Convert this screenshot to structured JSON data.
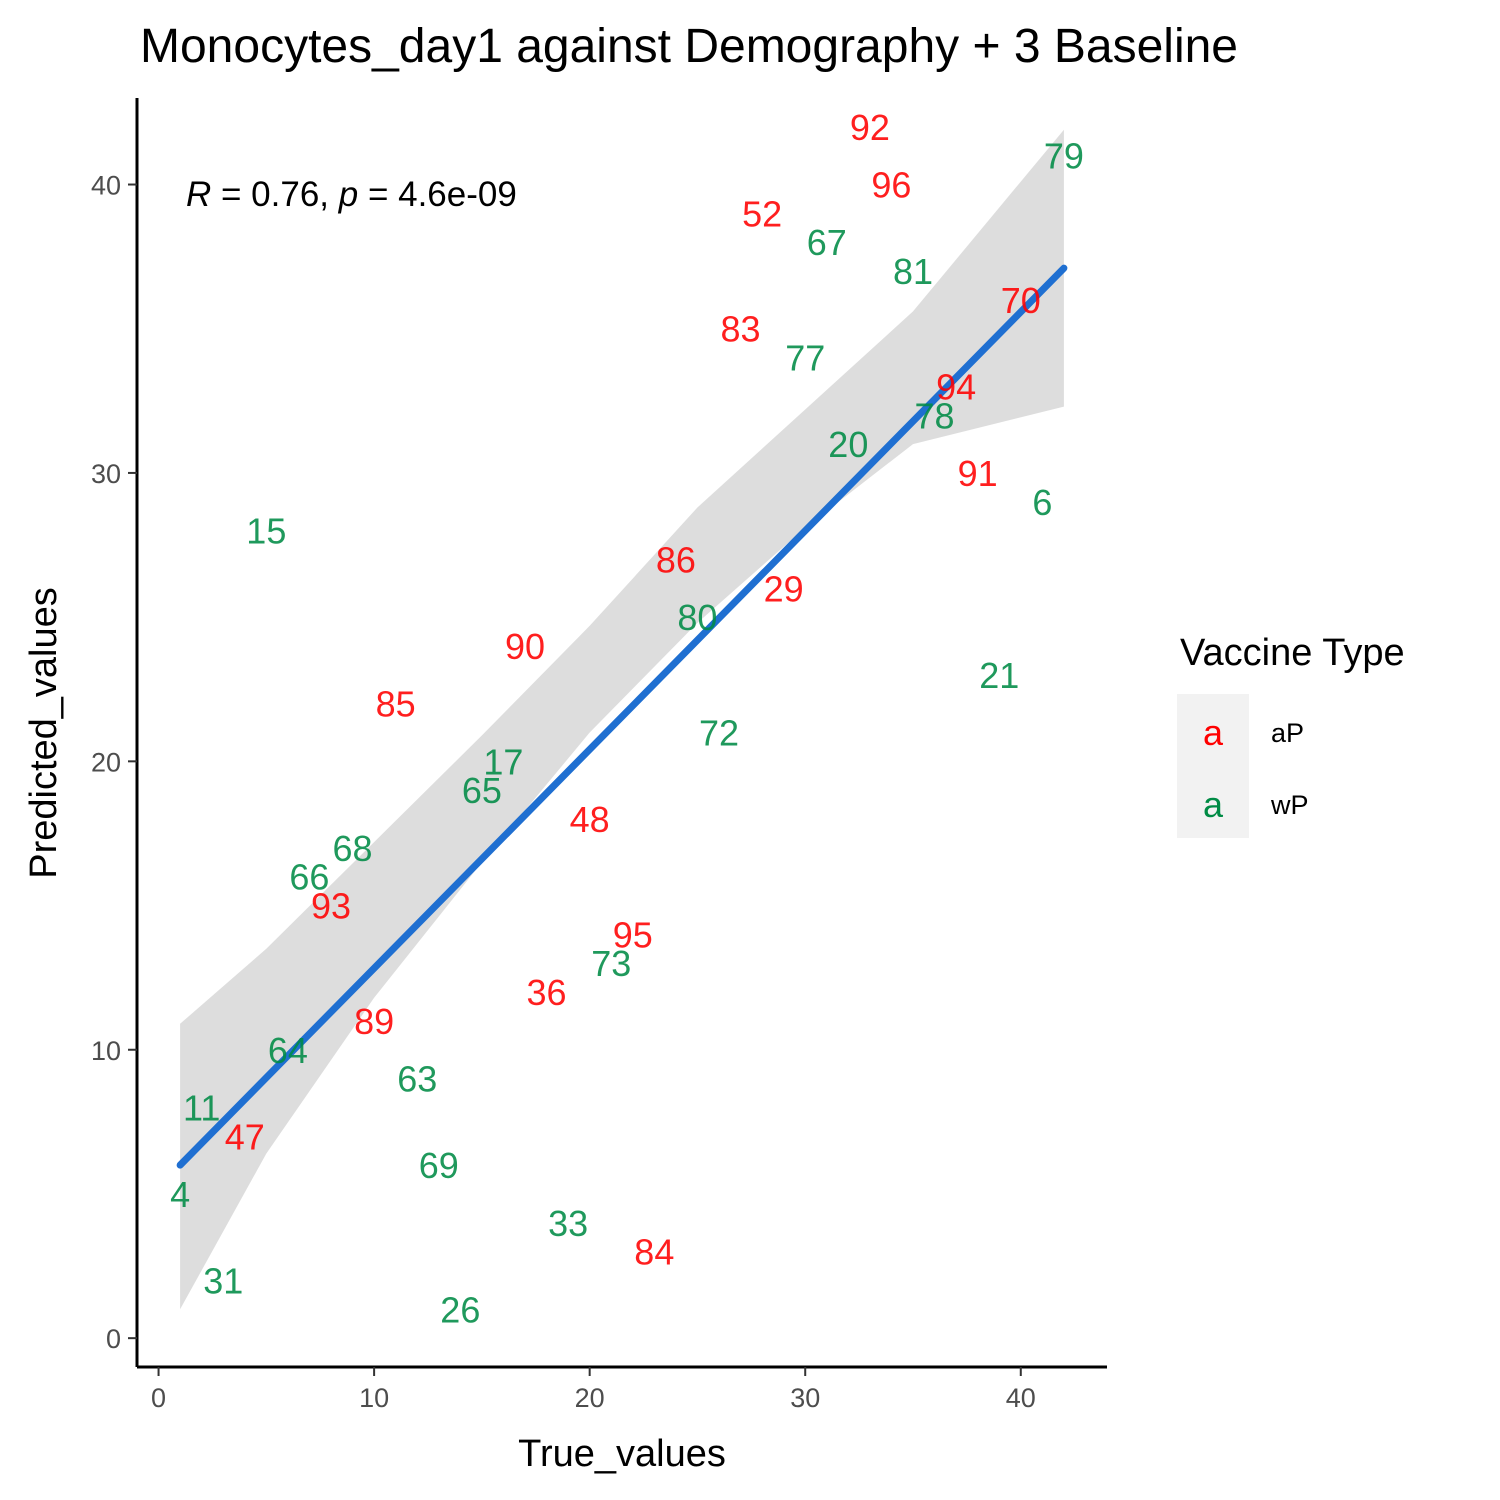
{
  "chart_data": {
    "type": "scatter",
    "title": "Monocytes_day1 against Demography + 3 Baseline",
    "xlabel": "True_values",
    "ylabel": "Predicted_values",
    "xlim": [
      -1,
      44
    ],
    "ylim": [
      -1,
      43
    ],
    "xticks": [
      0,
      10,
      20,
      30,
      40
    ],
    "yticks": [
      0,
      10,
      20,
      30,
      40
    ],
    "grid": false,
    "stats": {
      "R": "R",
      "r_value": " = 0.76, ",
      "p": "p",
      "p_value": " = 4.6e-09"
    },
    "legend": {
      "title": "Vaccine Type",
      "position": "right",
      "key_glyph": "a",
      "entries": [
        {
          "label": "aP",
          "color": "#ff0000"
        },
        {
          "label": "wP",
          "color": "#008b45"
        }
      ]
    },
    "regression": {
      "color": "#1f6fd1",
      "band_color": "#d9d9d9",
      "line": [
        [
          1,
          6.0
        ],
        [
          42,
          37.1
        ]
      ],
      "band_upper": [
        [
          1,
          10.9
        ],
        [
          5,
          13.5
        ],
        [
          10,
          17.2
        ],
        [
          15,
          20.9
        ],
        [
          20,
          24.7
        ],
        [
          25,
          28.8
        ],
        [
          30,
          32.2
        ],
        [
          35,
          35.6
        ],
        [
          42,
          41.9
        ]
      ],
      "band_lower": [
        [
          1,
          1.0
        ],
        [
          5,
          6.4
        ],
        [
          10,
          11.8
        ],
        [
          15,
          16.5
        ],
        [
          20,
          21.0
        ],
        [
          25,
          24.8
        ],
        [
          30,
          28.1
        ],
        [
          35,
          31.0
        ],
        [
          42,
          32.3
        ]
      ]
    },
    "points": [
      {
        "label": "92",
        "x": 33,
        "y": 42,
        "group": "aP"
      },
      {
        "label": "96",
        "x": 34,
        "y": 40,
        "group": "aP"
      },
      {
        "label": "79",
        "x": 42,
        "y": 41,
        "group": "wP"
      },
      {
        "label": "52",
        "x": 28,
        "y": 39,
        "group": "aP"
      },
      {
        "label": "67",
        "x": 31,
        "y": 38,
        "group": "wP"
      },
      {
        "label": "81",
        "x": 35,
        "y": 37,
        "group": "wP"
      },
      {
        "label": "70",
        "x": 40,
        "y": 36,
        "group": "aP"
      },
      {
        "label": "83",
        "x": 27,
        "y": 35,
        "group": "aP"
      },
      {
        "label": "77",
        "x": 30,
        "y": 34,
        "group": "wP"
      },
      {
        "label": "94",
        "x": 37,
        "y": 33,
        "group": "aP"
      },
      {
        "label": "78",
        "x": 36,
        "y": 32,
        "group": "wP"
      },
      {
        "label": "20",
        "x": 32,
        "y": 31,
        "group": "wP"
      },
      {
        "label": "91",
        "x": 38,
        "y": 30,
        "group": "aP"
      },
      {
        "label": "6",
        "x": 41,
        "y": 29,
        "group": "wP"
      },
      {
        "label": "15",
        "x": 5,
        "y": 28,
        "group": "wP"
      },
      {
        "label": "86",
        "x": 24,
        "y": 27,
        "group": "aP"
      },
      {
        "label": "29",
        "x": 29,
        "y": 26,
        "group": "aP"
      },
      {
        "label": "80",
        "x": 25,
        "y": 25,
        "group": "wP"
      },
      {
        "label": "90",
        "x": 17,
        "y": 24,
        "group": "aP"
      },
      {
        "label": "21",
        "x": 39,
        "y": 23,
        "group": "wP"
      },
      {
        "label": "85",
        "x": 11,
        "y": 22,
        "group": "aP"
      },
      {
        "label": "72",
        "x": 26,
        "y": 21,
        "group": "wP"
      },
      {
        "label": "17",
        "x": 16,
        "y": 20,
        "group": "wP"
      },
      {
        "label": "65",
        "x": 15,
        "y": 19,
        "group": "wP"
      },
      {
        "label": "48",
        "x": 20,
        "y": 18,
        "group": "aP"
      },
      {
        "label": "68",
        "x": 9,
        "y": 17,
        "group": "wP"
      },
      {
        "label": "66",
        "x": 7,
        "y": 16,
        "group": "wP"
      },
      {
        "label": "93",
        "x": 8,
        "y": 15,
        "group": "aP"
      },
      {
        "label": "95",
        "x": 22,
        "y": 14,
        "group": "aP"
      },
      {
        "label": "73",
        "x": 21,
        "y": 13,
        "group": "wP"
      },
      {
        "label": "36",
        "x": 18,
        "y": 12,
        "group": "aP"
      },
      {
        "label": "89",
        "x": 10,
        "y": 11,
        "group": "aP"
      },
      {
        "label": "64",
        "x": 6,
        "y": 10,
        "group": "wP"
      },
      {
        "label": "63",
        "x": 12,
        "y": 9,
        "group": "wP"
      },
      {
        "label": "11",
        "x": 2,
        "y": 8,
        "group": "wP"
      },
      {
        "label": "47",
        "x": 4,
        "y": 7,
        "group": "aP"
      },
      {
        "label": "69",
        "x": 13,
        "y": 6,
        "group": "wP"
      },
      {
        "label": "4",
        "x": 1,
        "y": 5,
        "group": "wP"
      },
      {
        "label": "33",
        "x": 19,
        "y": 4,
        "group": "wP"
      },
      {
        "label": "84",
        "x": 23,
        "y": 3,
        "group": "aP"
      },
      {
        "label": "31",
        "x": 3,
        "y": 2,
        "group": "wP"
      },
      {
        "label": "26",
        "x": 14,
        "y": 1,
        "group": "wP"
      }
    ]
  }
}
